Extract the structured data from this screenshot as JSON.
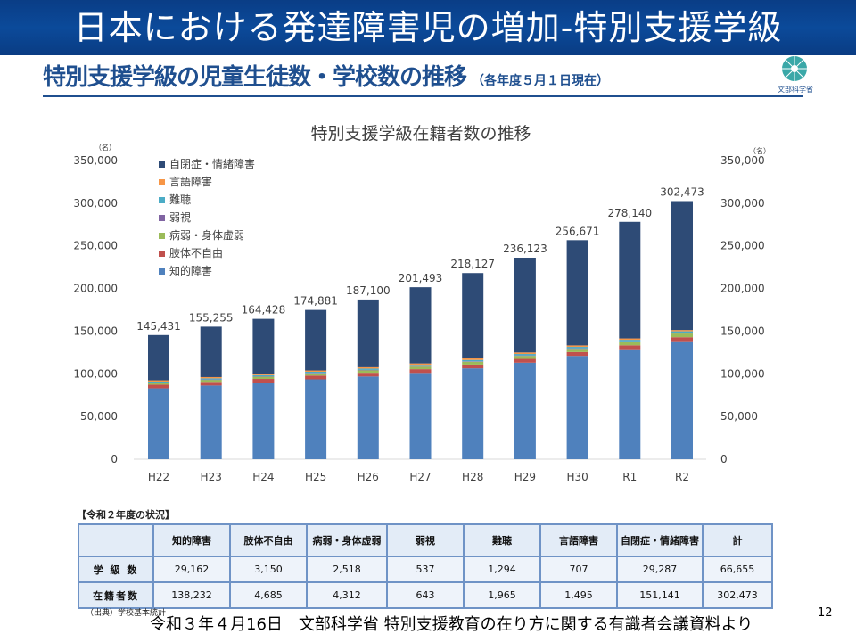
{
  "header": {
    "title": "日本における発達障害児の増加-特別支援学級",
    "subtitle": "特別支援学級の児童生徒数・学校数の推移",
    "subtitle_note": "（各年度５月１日現在）",
    "logo_text": "文部科学省"
  },
  "colors": {
    "banner": "#0b4a9a",
    "accent": "#1f4f8f"
  },
  "chart_data": {
    "type": "bar",
    "stacked": true,
    "title": "特別支援学級在籍者数の推移",
    "ylabel": "（名）",
    "ylabel_right": "（名）",
    "xlabel": "",
    "ylim": [
      0,
      350000
    ],
    "yticks": [
      0,
      50000,
      100000,
      150000,
      200000,
      250000,
      300000,
      350000
    ],
    "ytick_labels": [
      "0",
      "50,000",
      "100,000",
      "150,000",
      "200,000",
      "250,000",
      "300,000",
      "350,000"
    ],
    "grid": false,
    "legend_position": "top-left",
    "categories": [
      "H22",
      "H23",
      "H24",
      "H25",
      "H26",
      "H27",
      "H28",
      "H29",
      "H30",
      "R1",
      "R2"
    ],
    "totals": [
      145431,
      155255,
      164428,
      174881,
      187100,
      201493,
      218127,
      236123,
      256671,
      278140,
      302473
    ],
    "total_labels": [
      "145,431",
      "155,255",
      "164,428",
      "174,881",
      "187,100",
      "201,493",
      "218,127",
      "236,123",
      "256,671",
      "278,140",
      "302,473"
    ],
    "series": [
      {
        "name": "知的障害",
        "color": "#4f81bd",
        "values": [
          83000,
          86300,
          89700,
          93500,
          96800,
          101000,
          106400,
          113000,
          121000,
          128800,
          138232
        ]
      },
      {
        "name": "肢体不自由",
        "color": "#c0504d",
        "values": [
          4300,
          4300,
          4300,
          4400,
          4400,
          4400,
          4400,
          4500,
          4500,
          4600,
          4685
        ]
      },
      {
        "name": "病弱・身体虚弱",
        "color": "#9bbb59",
        "values": [
          2000,
          2300,
          2600,
          2600,
          2900,
          3000,
          3300,
          3500,
          3800,
          4100,
          4312
        ]
      },
      {
        "name": "弱視",
        "color": "#8064a2",
        "values": [
          400,
          450,
          450,
          500,
          500,
          550,
          550,
          550,
          600,
          600,
          643
        ]
      },
      {
        "name": "難聴",
        "color": "#4bacc6",
        "values": [
          1200,
          1300,
          1300,
          1400,
          1500,
          1500,
          1600,
          1700,
          1700,
          1800,
          1965
        ]
      },
      {
        "name": "言語障害",
        "color": "#f79646",
        "values": [
          1500,
          1500,
          1500,
          1500,
          1600,
          1700,
          1800,
          1800,
          1700,
          1600,
          1495
        ]
      },
      {
        "name": "自閉症・情緒障害",
        "color": "#2e4b76",
        "values": [
          53031,
          59105,
          64578,
          70981,
          79400,
          89343,
          100077,
          111073,
          123371,
          136640,
          151141
        ]
      }
    ],
    "legend_order": [
      "自閉症・情緒障害",
      "言語障害",
      "難聴",
      "弱視",
      "病弱・身体虚弱",
      "肢体不自由",
      "知的障害"
    ]
  },
  "table": {
    "caption": "【令和２年度の状況】",
    "headers": [
      "",
      "知的障害",
      "肢体不自由",
      "病弱・身体虚弱",
      "弱視",
      "難聴",
      "言語障害",
      "自閉症・情緒障害",
      "計"
    ],
    "rows": [
      {
        "label": "学 級 数",
        "values": [
          "29,162",
          "3,150",
          "2,518",
          "537",
          "1,294",
          "707",
          "29,287",
          "66,655"
        ]
      },
      {
        "label": "在籍者数",
        "values": [
          "138,232",
          "4,685",
          "4,312",
          "643",
          "1,965",
          "1,495",
          "151,141",
          "302,473"
        ]
      }
    ],
    "source_note": "（出典）学校基本統計"
  },
  "footer": {
    "citation": "令和３年４月16日　文部科学省 特別支援教育の在り方に関する有識者会議資料より",
    "page_number": "12"
  }
}
